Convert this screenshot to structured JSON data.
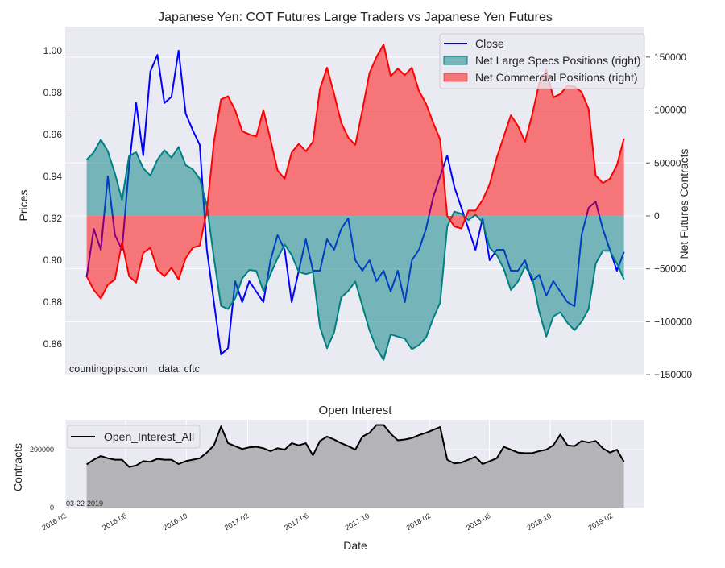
{
  "chart_data": [
    {
      "type": "area",
      "title": "Japanese Yen: COT Futures Large Traders vs Japanese Yen Futures",
      "ylabel": "Prices",
      "ylabel_right": "Net Futures Contracts",
      "watermark": "countingpips.com    data: cftc",
      "xlim": [
        "2016-02-01",
        "2019-04-08"
      ],
      "ylim": [
        0.845,
        1.0115
      ],
      "ylim_right": [
        -150700,
        178800
      ],
      "yticks": [
        "0.86",
        "0.88",
        "0.90",
        "0.92",
        "0.94",
        "0.96",
        "0.98",
        "1.00"
      ],
      "yticks_right": [
        "-150000",
        "-100000",
        "-50000",
        "0",
        "50000",
        "100000",
        "150000"
      ],
      "grid": true,
      "legend_position": "top-right",
      "x_start": "2016-03-15",
      "x_end": "2019-02-26",
      "colors": {
        "close": "#0000ff",
        "specs": "#008080",
        "commercial": "#ff0000",
        "background": "#eaeaf2"
      },
      "series": [
        {
          "name": "Close",
          "axis": "left",
          "values": [
            0.892,
            0.915,
            0.905,
            0.94,
            0.912,
            0.905,
            0.945,
            0.975,
            0.95,
            0.99,
            0.998,
            0.975,
            0.978,
            1.0,
            0.97,
            0.962,
            0.955,
            0.905,
            0.88,
            0.855,
            0.858,
            0.89,
            0.88,
            0.89,
            0.885,
            0.88,
            0.9,
            0.912,
            0.905,
            0.88,
            0.895,
            0.91,
            0.895,
            0.895,
            0.91,
            0.905,
            0.915,
            0.92,
            0.9,
            0.895,
            0.9,
            0.89,
            0.895,
            0.885,
            0.895,
            0.88,
            0.9,
            0.905,
            0.915,
            0.93,
            0.94,
            0.95,
            0.935,
            0.925,
            0.915,
            0.905,
            0.92,
            0.9,
            0.905,
            0.905,
            0.895,
            0.895,
            0.9,
            0.89,
            0.893,
            0.883,
            0.89,
            0.885,
            0.88,
            0.878,
            0.912,
            0.925,
            0.928,
            0.915,
            0.905,
            0.895,
            0.904
          ]
        },
        {
          "name": "Net Large Specs Positions (right)",
          "axis": "right",
          "values": [
            53000,
            60000,
            72000,
            61000,
            40000,
            15000,
            57000,
            60000,
            45000,
            38000,
            53000,
            62000,
            55000,
            65000,
            48000,
            44000,
            35000,
            10000,
            -40000,
            -85000,
            -88000,
            -78000,
            -59000,
            -51000,
            -52000,
            -71000,
            -55000,
            -40000,
            -27000,
            -37000,
            -53000,
            -55000,
            -53000,
            -105000,
            -125000,
            -110000,
            -77000,
            -71000,
            -62000,
            -85000,
            -108000,
            -125000,
            -136000,
            -112000,
            -114000,
            -116000,
            -126000,
            -122000,
            -115000,
            -97000,
            -82000,
            -10000,
            4000,
            2000,
            -4000,
            1000,
            -6000,
            -30000,
            -37000,
            -50000,
            -70000,
            -62000,
            -48000,
            -57000,
            -90000,
            -114000,
            -95000,
            -91000,
            -101000,
            -108000,
            -100000,
            -88000,
            -45000,
            -33000,
            -33000,
            -45000,
            -60000
          ]
        },
        {
          "name": "Net Commercial Positions (right)",
          "axis": "right",
          "values": [
            -57000,
            -70000,
            -78000,
            -65000,
            -60000,
            -25000,
            -57000,
            -63000,
            -35000,
            -30000,
            -51000,
            -57000,
            -49000,
            -60000,
            -40000,
            -30000,
            -28000,
            5000,
            70000,
            110000,
            113000,
            100000,
            80000,
            77000,
            75000,
            100000,
            72000,
            43000,
            35000,
            60000,
            68000,
            61000,
            70000,
            120000,
            140000,
            115000,
            88000,
            74000,
            67000,
            100000,
            135000,
            150000,
            162000,
            132000,
            139000,
            133000,
            140000,
            118000,
            106000,
            88000,
            72000,
            0,
            -10000,
            -12000,
            5000,
            5000,
            15000,
            30000,
            55000,
            75000,
            95000,
            85000,
            70000,
            95000,
            125000,
            138000,
            112000,
            115000,
            123000,
            122000,
            117000,
            101000,
            38000,
            31000,
            35000,
            48000,
            73000
          ]
        }
      ]
    },
    {
      "type": "area",
      "title": "Open Interest",
      "xlabel": "Date",
      "ylabel": "Contracts",
      "date_note": "03-22-2019",
      "xlim": [
        "2016-02-01",
        "2019-04-08"
      ],
      "ylim": [
        0,
        303000
      ],
      "yticks": [
        "0",
        "200000"
      ],
      "xticks": [
        "2016-02",
        "2016-06",
        "2016-10",
        "2017-02",
        "2017-06",
        "2017-10",
        "2018-02",
        "2018-06",
        "2018-10",
        "2019-02"
      ],
      "grid": true,
      "legend_position": "top-left",
      "x_start": "2016-03-15",
      "x_end": "2019-02-26",
      "colors": {
        "line": "#000000",
        "fill": "#b4b4b8"
      },
      "series": [
        {
          "name": "Open_Interest_All",
          "values": [
            149000,
            165000,
            178000,
            170000,
            165000,
            165000,
            140000,
            145000,
            160000,
            158000,
            168000,
            165000,
            165000,
            150000,
            160000,
            165000,
            170000,
            190000,
            215000,
            280000,
            222000,
            212000,
            202000,
            208000,
            210000,
            205000,
            195000,
            205000,
            200000,
            222000,
            215000,
            222000,
            180000,
            230000,
            245000,
            235000,
            222000,
            212000,
            200000,
            245000,
            258000,
            285000,
            285000,
            255000,
            232000,
            235000,
            240000,
            250000,
            258000,
            268000,
            278000,
            165000,
            152000,
            155000,
            165000,
            175000,
            150000,
            160000,
            170000,
            210000,
            200000,
            190000,
            188000,
            188000,
            195000,
            200000,
            215000,
            252000,
            215000,
            212000,
            230000,
            225000,
            230000,
            205000,
            190000,
            200000,
            158000
          ]
        }
      ]
    }
  ]
}
